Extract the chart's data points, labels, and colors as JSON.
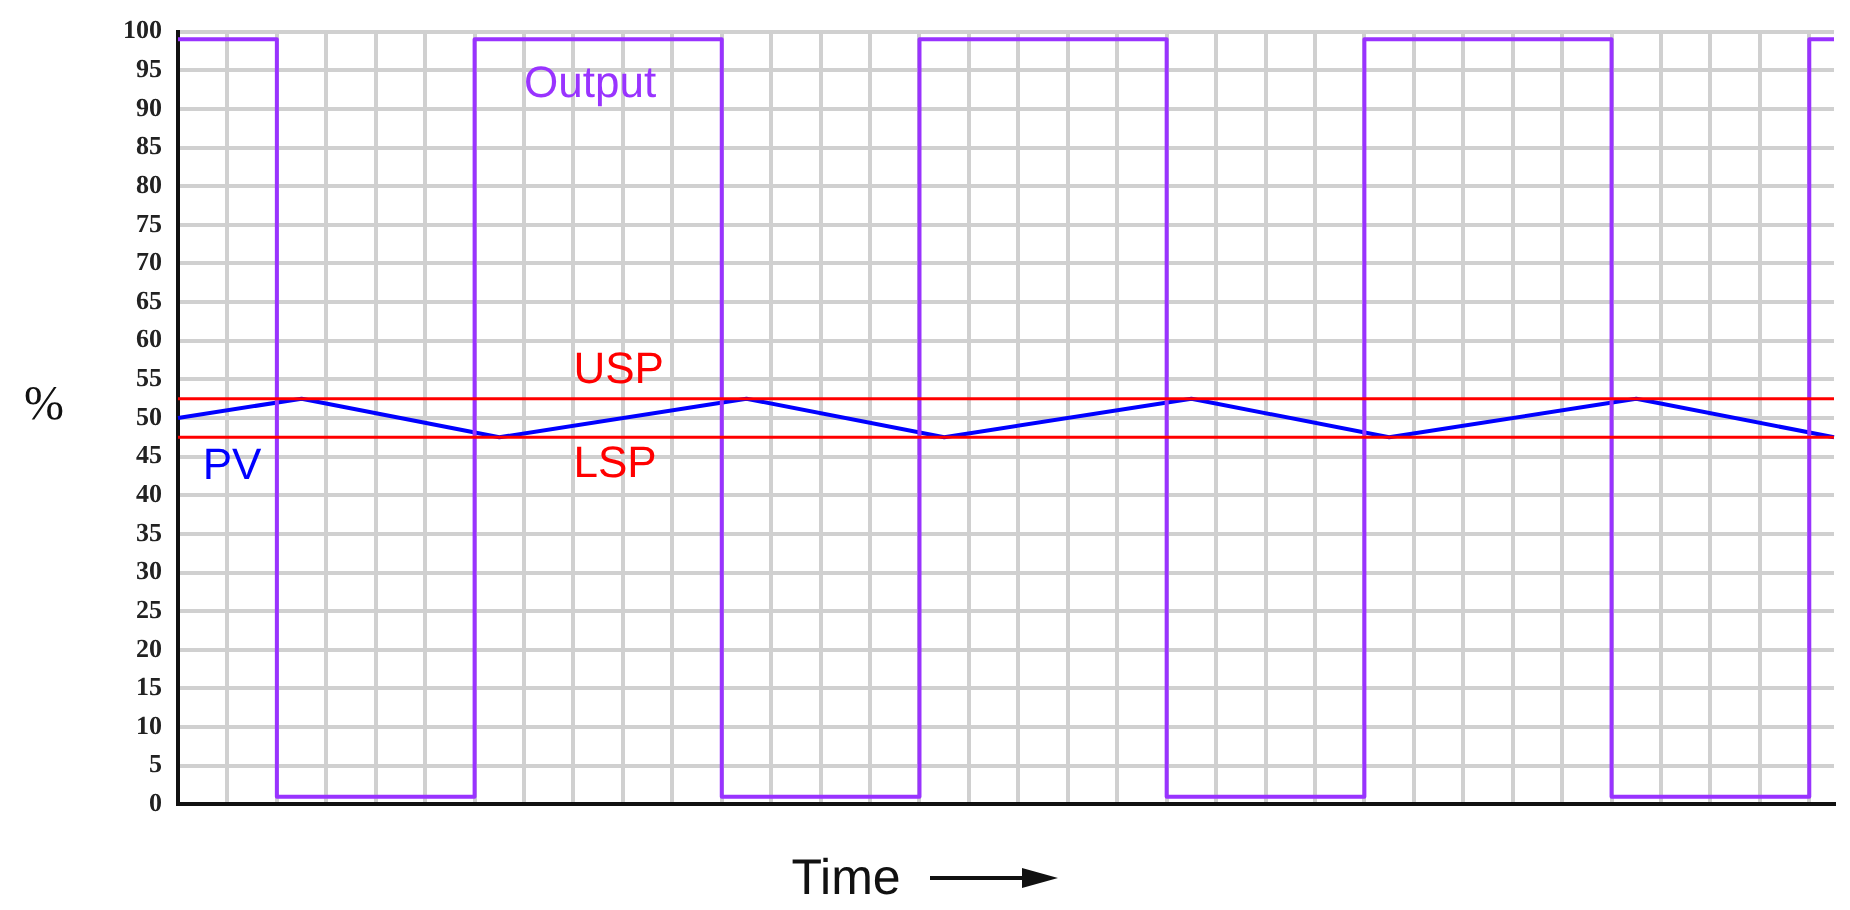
{
  "chart_data": {
    "type": "line",
    "xlabel": "Time",
    "ylabel": "%",
    "categories": [
      null,
      null,
      null,
      null,
      null,
      null,
      null,
      null,
      null,
      null,
      null,
      null,
      null,
      null,
      null,
      null,
      null,
      null,
      null,
      null,
      null,
      null,
      null,
      null,
      null,
      null,
      null,
      null,
      null,
      null,
      null,
      null,
      null,
      null,
      null,
      null,
      null,
      null,
      null,
      null,
      null,
      null,
      null,
      null,
      null,
      null,
      null,
      null,
      null,
      null,
      null,
      null,
      null,
      null,
      null,
      null,
      null,
      null,
      null,
      null,
      null,
      null,
      null,
      null,
      null,
      null,
      null,
      null
    ],
    "ylim": [
      0,
      100
    ],
    "yticks": [
      0,
      5,
      10,
      15,
      20,
      25,
      30,
      35,
      40,
      45,
      50,
      55,
      60,
      65,
      70,
      75,
      80,
      85,
      90,
      95,
      100
    ],
    "tick_labels": "y",
    "grid": true,
    "legend": false,
    "marker": "none",
    "series": [
      {
        "name": "Output",
        "type": "step",
        "color": "#9933ff",
        "values": [
          99,
          99,
          99,
          99,
          99,
          1,
          1,
          1,
          1,
          1,
          1,
          1,
          1,
          99,
          99,
          99,
          99,
          99,
          99,
          99,
          99,
          99,
          99,
          1,
          1,
          1,
          1,
          1,
          1,
          1,
          1,
          99,
          99,
          99,
          99,
          99,
          99,
          99,
          99,
          99,
          99,
          1,
          1,
          1,
          1,
          1,
          1,
          1,
          1,
          99,
          99,
          99,
          99,
          99,
          99,
          99,
          99,
          99,
          99,
          1,
          1,
          1,
          1,
          1,
          1,
          1,
          1,
          99
        ]
      },
      {
        "name": "PV",
        "type": "line",
        "color": "#0000ff",
        "values": [
          50,
          null,
          null,
          null,
          null,
          52.5,
          null,
          null,
          null,
          null,
          null,
          null,
          null,
          47.5,
          null,
          null,
          null,
          null,
          null,
          null,
          null,
          null,
          null,
          52.5,
          null,
          null,
          null,
          null,
          null,
          null,
          null,
          47.5,
          null,
          null,
          null,
          null,
          null,
          null,
          null,
          null,
          null,
          52.5,
          null,
          null,
          null,
          null,
          null,
          null,
          null,
          47.5,
          null,
          null,
          null,
          null,
          null,
          null,
          null,
          null,
          null,
          52.5,
          null,
          null,
          null,
          null,
          null,
          null,
          null,
          47.5
        ]
      }
    ],
    "ref_lines": [
      {
        "axis": "y",
        "value": 52.5,
        "label": "USP",
        "color": "#ff0000"
      },
      {
        "axis": "y",
        "value": 47.5,
        "label": "LSP",
        "color": "#ff0000"
      }
    ]
  }
}
